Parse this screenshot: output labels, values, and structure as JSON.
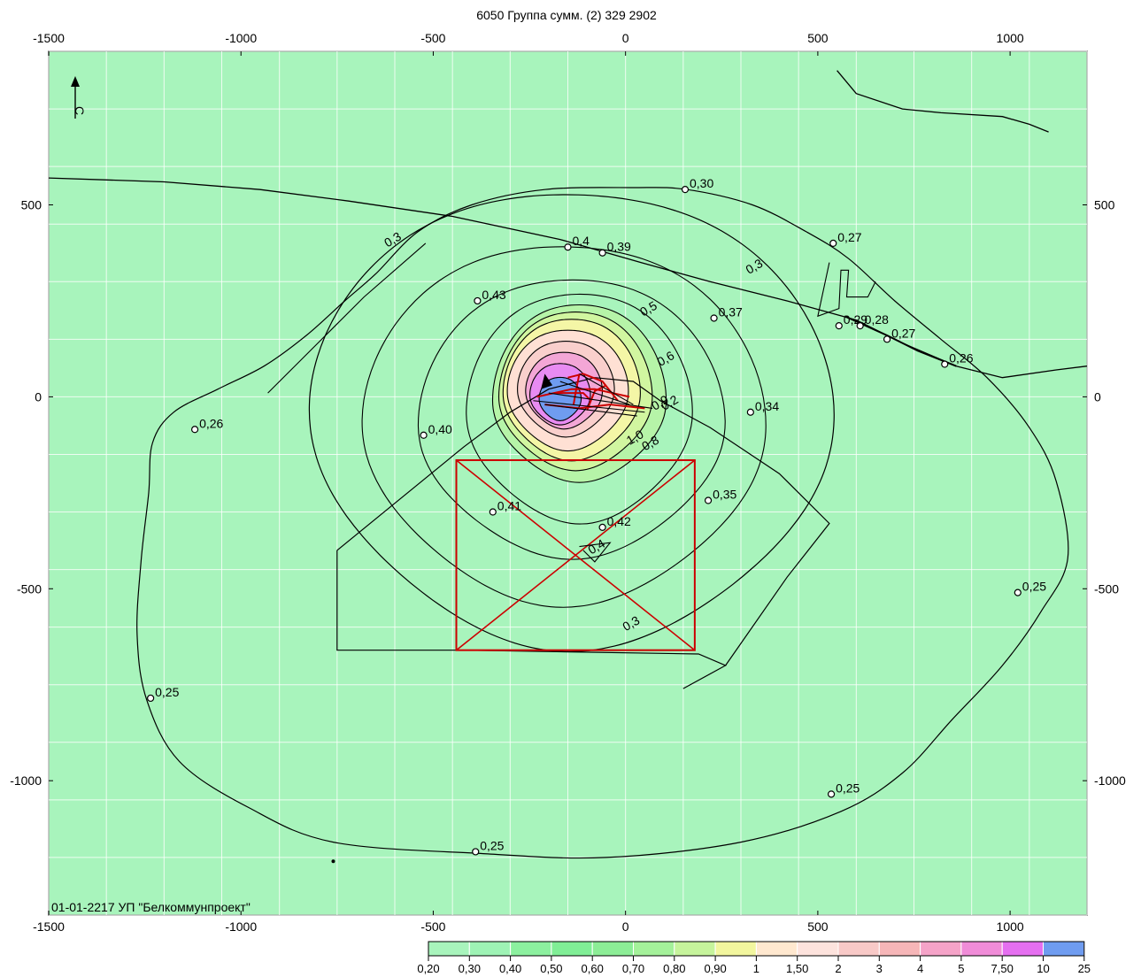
{
  "title": "6050 Группа сумм. (2) 329 2902",
  "footer_text": "01-01-2217 УП \"Белкоммунпроект\"",
  "north_label": "С",
  "axes": {
    "x_ticks": [
      "-1500",
      "-1000",
      "-500",
      "0",
      "500",
      "1000"
    ],
    "y_ticks": [
      "500",
      "0",
      "-500",
      "-1000"
    ],
    "x_range": [
      -1500,
      1200
    ],
    "y_range": [
      -1350,
      900
    ]
  },
  "colors": {
    "background": "#a8f4bc",
    "grid": "#ffffff",
    "boundary": "#cc0000"
  },
  "contour_labels": [
    {
      "text": "0,3",
      "x": -600,
      "y": 400
    },
    {
      "text": "0,3",
      "x": 340,
      "y": 330
    },
    {
      "text": "0,5",
      "x": 65,
      "y": 220
    },
    {
      "text": "0,6",
      "x": 110,
      "y": 90
    },
    {
      "text": "0,9",
      "x": 95,
      "y": -25
    },
    {
      "text": "0,8",
      "x": 70,
      "y": -130
    },
    {
      "text": "1,0",
      "x": 30,
      "y": -115
    },
    {
      "text": "0,2",
      "x": 120,
      "y": -25
    },
    {
      "text": "0,4",
      "x": -70,
      "y": -400
    },
    {
      "text": "0,3",
      "x": 20,
      "y": -600
    }
  ],
  "points": [
    {
      "label": "0,30",
      "x": 155,
      "y": 540
    },
    {
      "label": "0,4",
      "x": -150,
      "y": 390
    },
    {
      "label": "0,39",
      "x": -60,
      "y": 375
    },
    {
      "label": "0,43",
      "x": -385,
      "y": 250
    },
    {
      "label": "0,37",
      "x": 230,
      "y": 205
    },
    {
      "label": "0,27",
      "x": 540,
      "y": 400
    },
    {
      "label": "0,29",
      "x": 555,
      "y": 185
    },
    {
      "label": "0,28",
      "x": 610,
      "y": 185
    },
    {
      "label": "0,27",
      "x": 680,
      "y": 150
    },
    {
      "label": "0,26",
      "x": 830,
      "y": 85
    },
    {
      "label": "0,34",
      "x": 325,
      "y": -40
    },
    {
      "label": "0,26",
      "x": -1120,
      "y": -85
    },
    {
      "label": "0,40",
      "x": -525,
      "y": -100
    },
    {
      "label": "0,35",
      "x": 215,
      "y": -270
    },
    {
      "label": "0,41",
      "x": -345,
      "y": -300
    },
    {
      "label": "0,42",
      "x": -60,
      "y": -340
    },
    {
      "label": "0,25",
      "x": 1020,
      "y": -510
    },
    {
      "label": "0,25",
      "x": -1235,
      "y": -785
    },
    {
      "label": "0,25",
      "x": 535,
      "y": -1035
    },
    {
      "label": "0,25",
      "x": -390,
      "y": -1185
    }
  ],
  "legend": {
    "values": [
      "0,20",
      "0,30",
      "0,40",
      "0,50",
      "0,60",
      "0,70",
      "0,80",
      "0,90",
      "1",
      "1,50",
      "2",
      "3",
      "4",
      "5",
      "7,50",
      "10",
      "25"
    ],
    "colors": [
      "#a8f4bc",
      "#9ef3b5",
      "#8cf09f",
      "#80ee96",
      "#8ced96",
      "#a4f19a",
      "#c6f49c",
      "#f2f69e",
      "#ffe8cf",
      "#fde3dd",
      "#f8c9c7",
      "#f6b6b8",
      "#f5a3c8",
      "#f08cd8",
      "#e56ff0",
      "#6f9cf0"
    ]
  }
}
